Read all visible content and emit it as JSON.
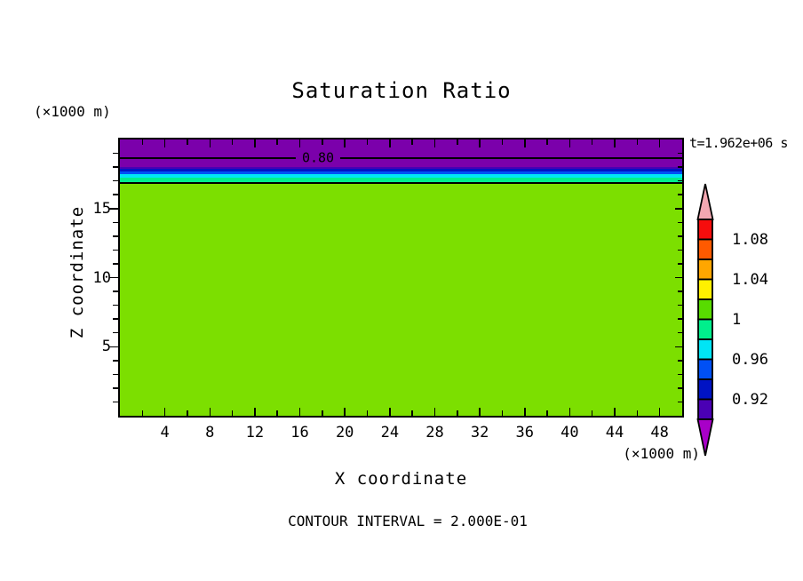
{
  "chart_data": {
    "type": "heatmap",
    "title": "Saturation Ratio",
    "xlabel": "X coordinate",
    "ylabel": "Z coordinate",
    "x_unit": "(×1000 m)",
    "y_unit": "(×1000 m)",
    "timestamp": "t=1.962e+06 s",
    "contour_note": "CONTOUR INTERVAL = 2.000E-01",
    "xlim": [
      0,
      50
    ],
    "ylim": [
      0,
      20
    ],
    "x_tick_labels": [
      4,
      8,
      12,
      16,
      20,
      24,
      28,
      32,
      36,
      40,
      44,
      48
    ],
    "x_major_step": 4,
    "x_minor_step": 2,
    "y_tick_labels": [
      5,
      10,
      15
    ],
    "y_major_step": 5,
    "y_minor_step": 1,
    "bands": [
      {
        "value_range": "< 0.90",
        "color": "#7B00AB",
        "z_from": 18.03,
        "z_to": 20.0
      },
      {
        "value_range": "0.90-0.92",
        "color": "#4A00B4",
        "z_from": 17.87,
        "z_to": 18.03
      },
      {
        "value_range": "0.92-0.94",
        "color": "#0013C4",
        "z_from": 17.68,
        "z_to": 17.87
      },
      {
        "value_range": "0.94-0.96",
        "color": "#0050F5",
        "z_from": 17.49,
        "z_to": 17.68
      },
      {
        "value_range": "0.96-0.98",
        "color": "#00E5F5",
        "z_from": 17.21,
        "z_to": 17.49
      },
      {
        "value_range": "0.98-1.00",
        "color": "#00EF8C",
        "z_from": 16.82,
        "z_to": 17.21
      },
      {
        "value_range": "1.00",
        "color": "#7CDF00",
        "z_from": 0.0,
        "z_to": 16.82
      }
    ],
    "contour_lines": [
      {
        "label": "0.80",
        "z": 18.62,
        "labeled": true
      },
      {
        "label": "1.00",
        "z": 16.82,
        "labeled": false
      }
    ],
    "colorbar": {
      "over_color": "#F3A7B1",
      "under_color": "#A800C8",
      "cells": [
        "#F60D0D",
        "#FF5A00",
        "#FFA600",
        "#FFF000",
        "#58DC00",
        "#00EF8C",
        "#00E5F5",
        "#0050F5",
        "#0013C4",
        "#4A00B4"
      ],
      "labels": [
        {
          "text": "1.08",
          "boundary": 1
        },
        {
          "text": "1.04",
          "boundary": 3
        },
        {
          "text": "1",
          "boundary": 5
        },
        {
          "text": "0.96",
          "boundary": 7
        },
        {
          "text": "0.92",
          "boundary": 9
        }
      ]
    }
  }
}
